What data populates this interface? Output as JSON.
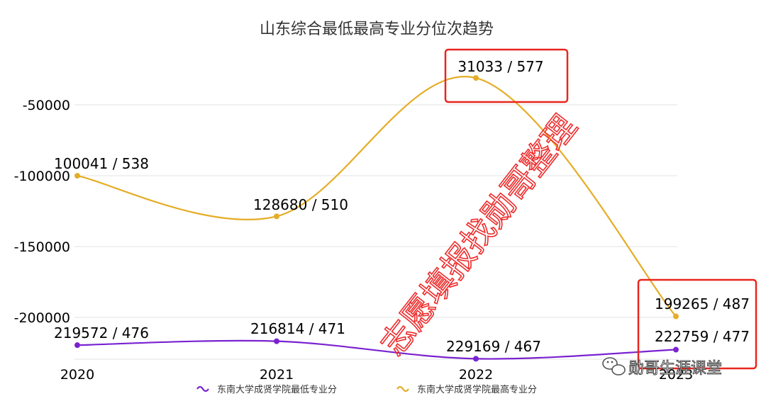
{
  "chart_data": {
    "type": "line",
    "title": "山东综合最低最高专业分位次趋势",
    "categories": [
      "2020",
      "2021",
      "2022",
      "2023"
    ],
    "category_labels": [
      "2020",
      "2021",
      "2022",
      "2023"
    ],
    "y_axis": {
      "min": -230000,
      "max": -20000,
      "ticks": [
        -50000,
        -100000,
        -150000,
        -200000
      ],
      "tick_labels": [
        "-50000",
        "-100000",
        "-150000",
        "-200000"
      ],
      "grid": true
    },
    "series": [
      {
        "name": "东南大学成贤学院最低专业分",
        "color": "#7a22d0",
        "values": [
          -219572,
          -216814,
          -229169,
          -222759
        ],
        "labels": [
          "219572 / 476",
          "216814 / 471",
          "229169 / 467",
          "222759 / 477"
        ]
      },
      {
        "name": "东南大学成贤学院最高专业分",
        "color": "#e5ad27",
        "values": [
          -100041,
          -128680,
          -31033,
          -199265
        ],
        "labels": [
          "100041 / 538",
          "128680 / 510",
          "31033 / 577",
          "199265 / 487"
        ]
      }
    ],
    "legend_position": "bottom",
    "highlight_color": "#e8261e"
  },
  "watermark": "志愿填报找勋哥整理",
  "brand_tag": "勋哥生涯课堂"
}
